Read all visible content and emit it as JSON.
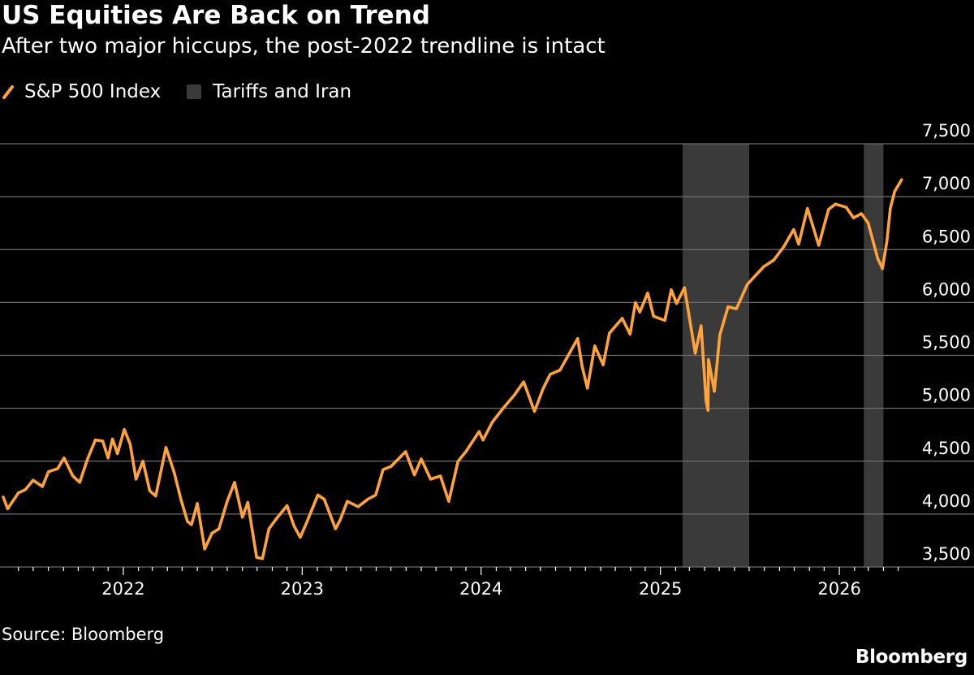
{
  "title": "US Equities Are Back on Trend",
  "subtitle": "After two major hiccups, the post-2022 trendline is intact",
  "legend": [
    {
      "label": "S&P 500 Index",
      "icon": "line-swatch-icon"
    },
    {
      "label": "Tariffs and Iran",
      "icon": "square-swatch-icon"
    }
  ],
  "source": "Source: Bloomberg",
  "brand": "Bloomberg",
  "colors": {
    "line": "#FFA23A",
    "shade": "#3A3A3A",
    "grid": "#6E6E6E",
    "background": "#000000",
    "text": "#FFFFFF"
  },
  "chart_data": {
    "type": "line",
    "title": "US Equities Are Back on Trend",
    "subtitle": "After two major hiccups, the post-2022 trendline is intact",
    "xlabel": "",
    "ylabel": "",
    "xlim": [
      "2021-05-01",
      "2026-05-15"
    ],
    "ylim": [
      3500,
      7500
    ],
    "y_ticks": [
      3500,
      4000,
      4500,
      5000,
      5500,
      6000,
      6500,
      7000,
      7500
    ],
    "y_tick_labels": [
      "3,500",
      "4,000",
      "4,500",
      "5,000",
      "5,500",
      "6,000",
      "6,500",
      "7,000",
      "7,500"
    ],
    "x_ticks": [
      "2022-01-01",
      "2023-01-01",
      "2024-01-01",
      "2025-01-01",
      "2026-01-01"
    ],
    "x_tick_labels": [
      "2022",
      "2023",
      "2024",
      "2025",
      "2026"
    ],
    "grid": "horizontal",
    "legend_position": "top-left",
    "y_axis_position": "right",
    "shaded_periods": [
      {
        "name": "Tariffs and Iran",
        "start": "2025-02-15",
        "end": "2025-07-01"
      },
      {
        "name": "Tariffs and Iran",
        "start": "2026-02-20",
        "end": "2026-04-01"
      }
    ],
    "series": [
      {
        "name": "S&P 500 Index",
        "points": [
          [
            "2021-05-01",
            4160
          ],
          [
            "2021-05-10",
            4050
          ],
          [
            "2021-06-01",
            4200
          ],
          [
            "2021-06-15",
            4230
          ],
          [
            "2021-07-01",
            4320
          ],
          [
            "2021-07-20",
            4260
          ],
          [
            "2021-08-01",
            4400
          ],
          [
            "2021-08-20",
            4430
          ],
          [
            "2021-09-02",
            4530
          ],
          [
            "2021-09-20",
            4360
          ],
          [
            "2021-10-04",
            4300
          ],
          [
            "2021-10-20",
            4520
          ],
          [
            "2021-11-05",
            4700
          ],
          [
            "2021-11-20",
            4690
          ],
          [
            "2021-12-01",
            4530
          ],
          [
            "2021-12-10",
            4710
          ],
          [
            "2021-12-20",
            4570
          ],
          [
            "2022-01-03",
            4800
          ],
          [
            "2022-01-15",
            4660
          ],
          [
            "2022-01-27",
            4330
          ],
          [
            "2022-02-10",
            4500
          ],
          [
            "2022-02-24",
            4220
          ],
          [
            "2022-03-08",
            4170
          ],
          [
            "2022-03-29",
            4630
          ],
          [
            "2022-04-15",
            4390
          ],
          [
            "2022-04-29",
            4130
          ],
          [
            "2022-05-12",
            3930
          ],
          [
            "2022-05-20",
            3900
          ],
          [
            "2022-06-01",
            4100
          ],
          [
            "2022-06-16",
            3670
          ],
          [
            "2022-07-01",
            3820
          ],
          [
            "2022-07-15",
            3860
          ],
          [
            "2022-08-01",
            4120
          ],
          [
            "2022-08-16",
            4300
          ],
          [
            "2022-09-01",
            3970
          ],
          [
            "2022-09-12",
            4110
          ],
          [
            "2022-09-30",
            3590
          ],
          [
            "2022-10-12",
            3580
          ],
          [
            "2022-10-25",
            3860
          ],
          [
            "2022-11-10",
            3960
          ],
          [
            "2022-12-01",
            4080
          ],
          [
            "2022-12-15",
            3890
          ],
          [
            "2022-12-28",
            3780
          ],
          [
            "2023-01-10",
            3920
          ],
          [
            "2023-02-02",
            4180
          ],
          [
            "2023-02-15",
            4140
          ],
          [
            "2023-03-10",
            3860
          ],
          [
            "2023-03-20",
            3950
          ],
          [
            "2023-04-03",
            4120
          ],
          [
            "2023-04-25",
            4070
          ],
          [
            "2023-05-15",
            4140
          ],
          [
            "2023-05-31",
            4180
          ],
          [
            "2023-06-15",
            4420
          ],
          [
            "2023-07-01",
            4450
          ],
          [
            "2023-07-31",
            4590
          ],
          [
            "2023-08-18",
            4370
          ],
          [
            "2023-09-01",
            4520
          ],
          [
            "2023-09-20",
            4330
          ],
          [
            "2023-10-10",
            4360
          ],
          [
            "2023-10-27",
            4120
          ],
          [
            "2023-11-15",
            4500
          ],
          [
            "2023-12-01",
            4590
          ],
          [
            "2023-12-28",
            4780
          ],
          [
            "2024-01-05",
            4700
          ],
          [
            "2024-01-24",
            4870
          ],
          [
            "2024-02-15",
            5000
          ],
          [
            "2024-03-08",
            5120
          ],
          [
            "2024-03-28",
            5250
          ],
          [
            "2024-04-19",
            4970
          ],
          [
            "2024-05-06",
            5180
          ],
          [
            "2024-05-21",
            5320
          ],
          [
            "2024-06-10",
            5360
          ],
          [
            "2024-07-16",
            5660
          ],
          [
            "2024-07-25",
            5400
          ],
          [
            "2024-08-05",
            5190
          ],
          [
            "2024-08-20",
            5590
          ],
          [
            "2024-09-06",
            5410
          ],
          [
            "2024-09-19",
            5710
          ],
          [
            "2024-10-15",
            5850
          ],
          [
            "2024-10-31",
            5700
          ],
          [
            "2024-11-11",
            6000
          ],
          [
            "2024-11-20",
            5910
          ],
          [
            "2024-12-06",
            6090
          ],
          [
            "2024-12-18",
            5870
          ],
          [
            "2025-01-10",
            5830
          ],
          [
            "2025-01-23",
            6120
          ],
          [
            "2025-02-03",
            5990
          ],
          [
            "2025-02-19",
            6140
          ],
          [
            "2025-03-13",
            5520
          ],
          [
            "2025-03-25",
            5780
          ],
          [
            "2025-04-04",
            5070
          ],
          [
            "2025-04-08",
            4980
          ],
          [
            "2025-04-09",
            5460
          ],
          [
            "2025-04-21",
            5160
          ],
          [
            "2025-05-02",
            5690
          ],
          [
            "2025-05-19",
            5960
          ],
          [
            "2025-06-05",
            5940
          ],
          [
            "2025-06-27",
            6170
          ],
          [
            "2025-07-15",
            6260
          ],
          [
            "2025-07-31",
            6340
          ],
          [
            "2025-08-20",
            6400
          ],
          [
            "2025-09-10",
            6530
          ],
          [
            "2025-09-30",
            6690
          ],
          [
            "2025-10-10",
            6550
          ],
          [
            "2025-10-28",
            6890
          ],
          [
            "2025-11-20",
            6540
          ],
          [
            "2025-12-10",
            6880
          ],
          [
            "2025-12-24",
            6930
          ],
          [
            "2026-01-15",
            6900
          ],
          [
            "2026-01-30",
            6800
          ],
          [
            "2026-02-15",
            6840
          ],
          [
            "2026-03-01",
            6750
          ],
          [
            "2026-03-20",
            6420
          ],
          [
            "2026-03-30",
            6320
          ],
          [
            "2026-04-08",
            6580
          ],
          [
            "2026-04-15",
            6890
          ],
          [
            "2026-04-24",
            7050
          ],
          [
            "2026-05-08",
            7160
          ]
        ]
      }
    ]
  }
}
